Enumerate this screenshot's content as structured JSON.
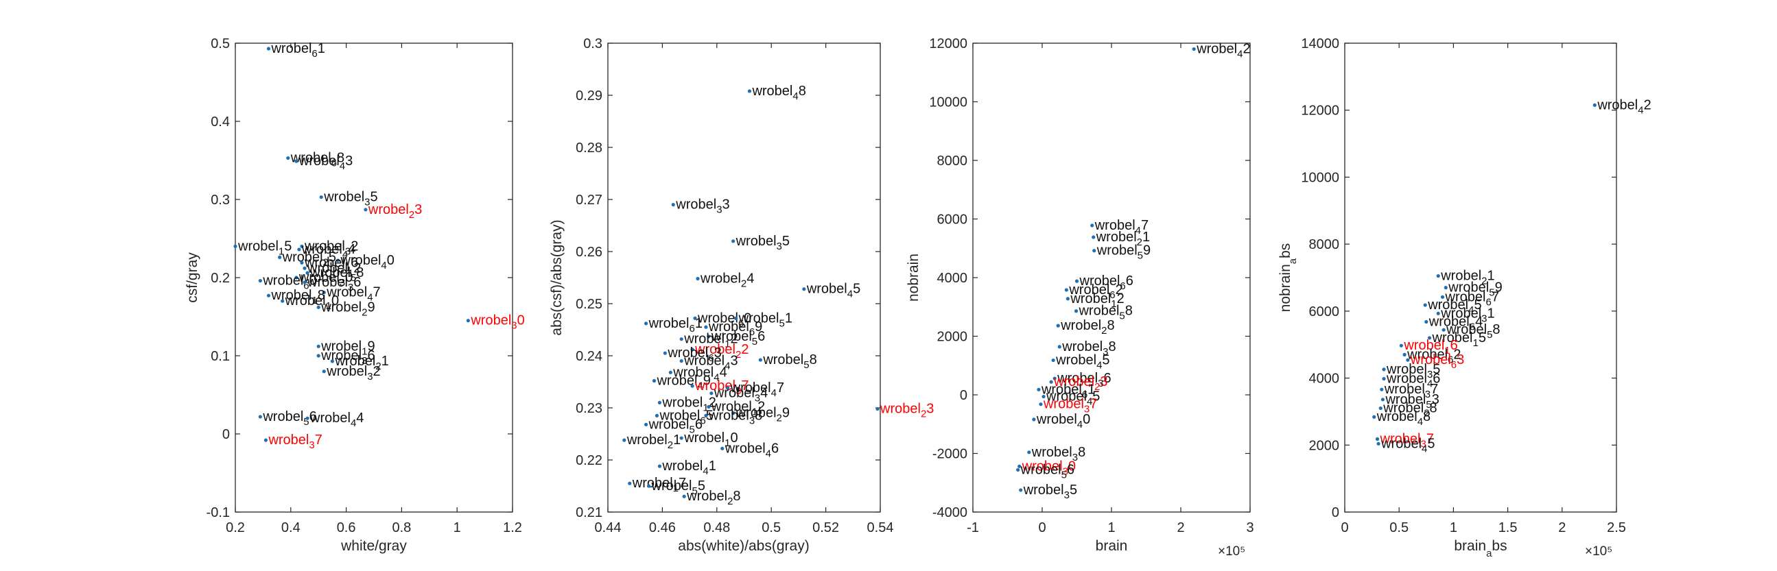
{
  "colors": {
    "point": "#1f6fb4",
    "label_normal": "#111111",
    "label_highlight": "#ff0000",
    "axis": "#262626"
  },
  "chart_data": [
    {
      "type": "scatter",
      "xlabel": "white/gray",
      "ylabel": "csf/gray",
      "xlim": [
        0.2,
        1.2
      ],
      "ylim": [
        -0.1,
        0.5
      ],
      "xticks": [
        "0.2",
        "0.4",
        "0.6",
        "0.8",
        "1",
        "1.2"
      ],
      "yticks": [
        "-0.1",
        "0",
        "0.1",
        "0.2",
        "0.3",
        "0.4",
        "0.5"
      ],
      "exponent": "",
      "points": [
        {
          "x": 0.32,
          "y": 0.493,
          "label": "wrobel",
          "sub": "6",
          "suf": "1",
          "hl": false
        },
        {
          "x": 0.39,
          "y": 0.353,
          "label": "wrobel",
          "sub": "6",
          "suf": "8",
          "hl": false
        },
        {
          "x": 0.42,
          "y": 0.349,
          "label": "wrobel",
          "sub": "4",
          "suf": "3",
          "hl": false
        },
        {
          "x": 0.51,
          "y": 0.303,
          "label": "wrobel",
          "sub": "3",
          "suf": "5",
          "hl": false
        },
        {
          "x": 0.67,
          "y": 0.287,
          "label": "wrobel",
          "sub": "2",
          "suf": "3",
          "hl": true
        },
        {
          "x": 0.2,
          "y": 0.24,
          "label": "wrobel",
          "sub": "1",
          "suf": "5",
          "hl": false
        },
        {
          "x": 0.44,
          "y": 0.24,
          "label": "wrobel",
          "sub": "3",
          "suf": "2",
          "hl": false
        },
        {
          "x": 0.43,
          "y": 0.236,
          "label": "wrobel",
          "sub": "4",
          "suf": "4",
          "hl": false
        },
        {
          "x": 0.36,
          "y": 0.226,
          "label": "wrobel",
          "sub": "2",
          "suf": "5",
          "hl": false
        },
        {
          "x": 0.57,
          "y": 0.222,
          "label": "wrobel",
          "sub": "4",
          "suf": "0",
          "hl": false
        },
        {
          "x": 0.44,
          "y": 0.219,
          "label": "wrobel",
          "sub": "1",
          "suf": "6",
          "hl": false
        },
        {
          "x": 0.45,
          "y": 0.212,
          "label": "wrobel",
          "sub": "1",
          "suf": "2",
          "hl": false
        },
        {
          "x": 0.46,
          "y": 0.206,
          "label": "wrobel",
          "sub": "5",
          "suf": "8",
          "hl": false
        },
        {
          "x": 0.42,
          "y": 0.2,
          "label": "wrobel",
          "sub": "3",
          "suf": "0",
          "hl": false
        },
        {
          "x": 0.29,
          "y": 0.196,
          "label": "wrobel",
          "sub": "6",
          "suf": "0",
          "hl": false
        },
        {
          "x": 0.45,
          "y": 0.194,
          "label": "wrobel",
          "sub": "3",
          "suf": "6",
          "hl": false
        },
        {
          "x": 0.52,
          "y": 0.181,
          "label": "wrobel",
          "sub": "4",
          "suf": "7",
          "hl": false
        },
        {
          "x": 0.32,
          "y": 0.177,
          "label": "wrobel",
          "sub": "1",
          "suf": "8",
          "hl": false
        },
        {
          "x": 0.37,
          "y": 0.17,
          "label": "wrobel",
          "sub": "1",
          "suf": "0",
          "hl": false
        },
        {
          "x": 0.5,
          "y": 0.162,
          "label": "wrobel",
          "sub": "2",
          "suf": "9",
          "hl": false
        },
        {
          "x": 1.04,
          "y": 0.145,
          "label": "wrobel",
          "sub": "3",
          "suf": "0",
          "hl": true
        },
        {
          "x": 0.5,
          "y": 0.112,
          "label": "wrobel",
          "sub": "1",
          "suf": "9",
          "hl": false
        },
        {
          "x": 0.5,
          "y": 0.1,
          "label": "wrobel",
          "sub": "3",
          "suf": "6",
          "hl": false
        },
        {
          "x": 0.55,
          "y": 0.093,
          "label": "wrobel",
          "sub": "2",
          "suf": "1",
          "hl": false
        },
        {
          "x": 0.52,
          "y": 0.08,
          "label": "wrobel",
          "sub": "3",
          "suf": "2",
          "hl": false
        },
        {
          "x": 0.29,
          "y": 0.022,
          "label": "wrobel",
          "sub": "5",
          "suf": "6",
          "hl": false
        },
        {
          "x": 0.46,
          "y": 0.02,
          "label": "wrobel",
          "sub": "4",
          "suf": "4",
          "hl": false
        },
        {
          "x": 0.31,
          "y": -0.008,
          "label": "wrobel",
          "sub": "3",
          "suf": "7",
          "hl": true
        }
      ]
    },
    {
      "type": "scatter",
      "xlabel": "abs(white)/abs(gray)",
      "ylabel": "abs(csf)/abs(gray)",
      "xlim": [
        0.44,
        0.54
      ],
      "ylim": [
        0.21,
        0.3
      ],
      "xticks": [
        "0.44",
        "0.46",
        "0.48",
        "0.5",
        "0.52",
        "0.54"
      ],
      "yticks": [
        "0.21",
        "0.22",
        "0.23",
        "0.24",
        "0.25",
        "0.26",
        "0.27",
        "0.28",
        "0.29",
        "0.3"
      ],
      "exponent": "",
      "points": [
        {
          "x": 0.492,
          "y": 0.2908,
          "label": "wrobel",
          "sub": "4",
          "suf": "8",
          "hl": false
        },
        {
          "x": 0.464,
          "y": 0.269,
          "label": "wrobel",
          "sub": "3",
          "suf": "3",
          "hl": false
        },
        {
          "x": 0.486,
          "y": 0.262,
          "label": "wrobel",
          "sub": "3",
          "suf": "5",
          "hl": false
        },
        {
          "x": 0.473,
          "y": 0.2548,
          "label": "wrobel",
          "sub": "2",
          "suf": "4",
          "hl": false
        },
        {
          "x": 0.512,
          "y": 0.2528,
          "label": "wrobel",
          "sub": "4",
          "suf": "5",
          "hl": false
        },
        {
          "x": 0.472,
          "y": 0.2472,
          "label": "wrobel",
          "sub": "6",
          "suf": "0",
          "hl": false
        },
        {
          "x": 0.487,
          "y": 0.2472,
          "label": "wrobel",
          "sub": "5",
          "suf": "1",
          "hl": false
        },
        {
          "x": 0.454,
          "y": 0.2462,
          "label": "wrobel",
          "sub": "6",
          "suf": "1",
          "hl": false
        },
        {
          "x": 0.476,
          "y": 0.2455,
          "label": "wrobel",
          "sub": "6",
          "suf": "9",
          "hl": false
        },
        {
          "x": 0.477,
          "y": 0.2437,
          "label": "wrobel",
          "sub": "5",
          "suf": "6",
          "hl": false
        },
        {
          "x": 0.467,
          "y": 0.2432,
          "label": "wrobel",
          "sub": "1",
          "suf": "2",
          "hl": false
        },
        {
          "x": 0.471,
          "y": 0.2412,
          "label": "wrobel",
          "sub": "2",
          "suf": "2",
          "hl": true
        },
        {
          "x": 0.461,
          "y": 0.2405,
          "label": "wrobel",
          "sub": "6",
          "suf": "3",
          "hl": false
        },
        {
          "x": 0.496,
          "y": 0.2392,
          "label": "wrobel",
          "sub": "5",
          "suf": "8",
          "hl": false
        },
        {
          "x": 0.467,
          "y": 0.239,
          "label": "wrobel",
          "sub": "4",
          "suf": "3",
          "hl": false
        },
        {
          "x": 0.463,
          "y": 0.2368,
          "label": "wrobel",
          "sub": "4",
          "suf": "4",
          "hl": false
        },
        {
          "x": 0.457,
          "y": 0.2352,
          "label": "wrobel",
          "sub": "4",
          "suf": "9",
          "hl": false
        },
        {
          "x": 0.471,
          "y": 0.2342,
          "label": "wrobel",
          "sub": "3",
          "suf": "7",
          "hl": true
        },
        {
          "x": 0.484,
          "y": 0.2338,
          "label": "wrobel",
          "sub": "4",
          "suf": "7",
          "hl": false
        },
        {
          "x": 0.478,
          "y": 0.2328,
          "label": "wrobel",
          "sub": "3",
          "suf": "4",
          "hl": false
        },
        {
          "x": 0.459,
          "y": 0.231,
          "label": "wrobel",
          "sub": "1",
          "suf": "2",
          "hl": false
        },
        {
          "x": 0.477,
          "y": 0.2302,
          "label": "wrobel",
          "sub": "1",
          "suf": "2",
          "hl": false
        },
        {
          "x": 0.539,
          "y": 0.2298,
          "label": "wrobel",
          "sub": "2",
          "suf": "3",
          "hl": true
        },
        {
          "x": 0.486,
          "y": 0.229,
          "label": "wrobel",
          "sub": "2",
          "suf": "9",
          "hl": false
        },
        {
          "x": 0.458,
          "y": 0.2285,
          "label": "wrobel",
          "sub": "6",
          "suf": "5",
          "hl": false
        },
        {
          "x": 0.476,
          "y": 0.2285,
          "label": "wrobel",
          "sub": "3",
          "suf": "8",
          "hl": false
        },
        {
          "x": 0.454,
          "y": 0.2268,
          "label": "wrobel",
          "sub": "5",
          "suf": "6",
          "hl": false
        },
        {
          "x": 0.446,
          "y": 0.2238,
          "label": "wrobel",
          "sub": "2",
          "suf": "1",
          "hl": false
        },
        {
          "x": 0.467,
          "y": 0.2242,
          "label": "wrobel",
          "sub": "1",
          "suf": "0",
          "hl": false
        },
        {
          "x": 0.482,
          "y": 0.2222,
          "label": "wrobel",
          "sub": "4",
          "suf": "6",
          "hl": false
        },
        {
          "x": 0.459,
          "y": 0.2188,
          "label": "wrobel",
          "sub": "4",
          "suf": "1",
          "hl": false
        },
        {
          "x": 0.448,
          "y": 0.2155,
          "label": "wrobel",
          "sub": "1",
          "suf": "7",
          "hl": false
        },
        {
          "x": 0.455,
          "y": 0.215,
          "label": "wrobel",
          "sub": "5",
          "suf": "5",
          "hl": false
        },
        {
          "x": 0.468,
          "y": 0.213,
          "label": "wrobel",
          "sub": "2",
          "suf": "8",
          "hl": false
        }
      ]
    },
    {
      "type": "scatter",
      "xlabel": "brain",
      "ylabel": "nobrain",
      "xlim": [
        -1,
        3
      ],
      "ylim": [
        -4000,
        12000
      ],
      "xticks": [
        "-1",
        "0",
        "1",
        "2",
        "3"
      ],
      "yticks": [
        "-4000",
        "-2000",
        "0",
        "2000",
        "4000",
        "6000",
        "8000",
        "10000",
        "12000"
      ],
      "exponent": "×10⁵",
      "points": [
        {
          "x": 2.19,
          "y": 11800,
          "label": "wrobel",
          "sub": "4",
          "suf": "2",
          "hl": false
        },
        {
          "x": 0.72,
          "y": 5780,
          "label": "wrobel",
          "sub": "4",
          "suf": "7",
          "hl": false
        },
        {
          "x": 0.74,
          "y": 5380,
          "label": "wrobel",
          "sub": "2",
          "suf": "1",
          "hl": false
        },
        {
          "x": 0.75,
          "y": 4920,
          "label": "wrobel",
          "sub": "5",
          "suf": "9",
          "hl": false
        },
        {
          "x": 0.5,
          "y": 3880,
          "label": "wrobel",
          "sub": "6",
          "suf": "6",
          "hl": false
        },
        {
          "x": 0.35,
          "y": 3580,
          "label": "wrobel",
          "sub": "6",
          "suf": "2",
          "hl": false
        },
        {
          "x": 0.37,
          "y": 3280,
          "label": "wrobel",
          "sub": "1",
          "suf": "2",
          "hl": false
        },
        {
          "x": 0.49,
          "y": 2860,
          "label": "wrobel",
          "sub": "5",
          "suf": "8",
          "hl": false
        },
        {
          "x": 0.23,
          "y": 2360,
          "label": "wrobel",
          "sub": "2",
          "suf": "8",
          "hl": false
        },
        {
          "x": 0.25,
          "y": 1640,
          "label": "wrobel",
          "sub": "3",
          "suf": "8",
          "hl": false
        },
        {
          "x": 0.16,
          "y": 1180,
          "label": "wrobel",
          "sub": "4",
          "suf": "5",
          "hl": false
        },
        {
          "x": 0.18,
          "y": 560,
          "label": "wrobel",
          "sub": "3",
          "suf": "6",
          "hl": false
        },
        {
          "x": 0.13,
          "y": 440,
          "label": "wrobel",
          "sub": "2",
          "suf": "3",
          "hl": true
        },
        {
          "x": -0.05,
          "y": 180,
          "label": "wrobel",
          "sub": "6",
          "suf": "1",
          "hl": false
        },
        {
          "x": 0.02,
          "y": -60,
          "label": "wrobel",
          "sub": "4",
          "suf": "5",
          "hl": false
        },
        {
          "x": -0.02,
          "y": -320,
          "label": "wrobel",
          "sub": "3",
          "suf": "7",
          "hl": true
        },
        {
          "x": -0.12,
          "y": -840,
          "label": "wrobel",
          "sub": "4",
          "suf": "0",
          "hl": false
        },
        {
          "x": -0.19,
          "y": -1960,
          "label": "wrobel",
          "sub": "3",
          "suf": "8",
          "hl": false
        },
        {
          "x": -0.33,
          "y": -2440,
          "label": "wrobel",
          "sub": "3",
          "suf": "0",
          "hl": true
        },
        {
          "x": -0.35,
          "y": -2560,
          "label": "wrobel",
          "sub": "5",
          "suf": "6",
          "hl": false
        },
        {
          "x": -0.31,
          "y": -3250,
          "label": "wrobel",
          "sub": "3",
          "suf": "5",
          "hl": false
        }
      ]
    },
    {
      "type": "scatter",
      "xlabel": "brain_abs",
      "ylabel": "nobrain_abs",
      "xlim": [
        0,
        2.5
      ],
      "ylim": [
        0,
        14000
      ],
      "xticks": [
        "0",
        "0.5",
        "1",
        "1.5",
        "2",
        "2.5"
      ],
      "yticks": [
        "0",
        "2000",
        "4000",
        "6000",
        "8000",
        "10000",
        "12000",
        "14000"
      ],
      "exponent": "×10⁵",
      "points": [
        {
          "x": 2.3,
          "y": 12150,
          "label": "wrobel",
          "sub": "4",
          "suf": "2",
          "hl": false
        },
        {
          "x": 0.86,
          "y": 7050,
          "label": "wrobel",
          "sub": "2",
          "suf": "1",
          "hl": false
        },
        {
          "x": 0.93,
          "y": 6700,
          "label": "wrobel",
          "sub": "5",
          "suf": "9",
          "hl": false
        },
        {
          "x": 0.9,
          "y": 6420,
          "label": "wrobel",
          "sub": "6",
          "suf": "7",
          "hl": false
        },
        {
          "x": 0.74,
          "y": 6180,
          "label": "wrobel",
          "sub": "4",
          "suf": "5",
          "hl": false
        },
        {
          "x": 0.86,
          "y": 5930,
          "label": "wrobel",
          "sub": "3",
          "suf": "1",
          "hl": false
        },
        {
          "x": 0.75,
          "y": 5680,
          "label": "wrobel",
          "sub": "6",
          "suf": "4",
          "hl": false
        },
        {
          "x": 0.91,
          "y": 5440,
          "label": "wrobel",
          "sub": "5",
          "suf": "8",
          "hl": false
        },
        {
          "x": 0.78,
          "y": 5200,
          "label": "wrobel",
          "sub": "1",
          "suf": "5",
          "hl": false
        },
        {
          "x": 0.52,
          "y": 4970,
          "label": "wrobel",
          "sub": "1",
          "suf": "6",
          "hl": true
        },
        {
          "x": 0.55,
          "y": 4700,
          "label": "wrobel",
          "sub": "6",
          "suf": "2",
          "hl": false
        },
        {
          "x": 0.58,
          "y": 4540,
          "label": "wrobel",
          "sub": "6",
          "suf": "3",
          "hl": true
        },
        {
          "x": 0.36,
          "y": 4260,
          "label": "wrobel",
          "sub": "3",
          "suf": "5",
          "hl": false
        },
        {
          "x": 0.36,
          "y": 3980,
          "label": "wrobel",
          "sub": "4",
          "suf": "6",
          "hl": false
        },
        {
          "x": 0.34,
          "y": 3660,
          "label": "wrobel",
          "sub": "3",
          "suf": "7",
          "hl": false
        },
        {
          "x": 0.35,
          "y": 3360,
          "label": "wrobel",
          "sub": "5",
          "suf": "3",
          "hl": false
        },
        {
          "x": 0.33,
          "y": 3100,
          "label": "wrobel",
          "sub": "2",
          "suf": "8",
          "hl": false
        },
        {
          "x": 0.27,
          "y": 2840,
          "label": "wrobel",
          "sub": "4",
          "suf": "8",
          "hl": false
        },
        {
          "x": 0.3,
          "y": 2180,
          "label": "wrobel",
          "sub": "3",
          "suf": "7",
          "hl": true
        },
        {
          "x": 0.31,
          "y": 2040,
          "label": "wrobel",
          "sub": "4",
          "suf": "5",
          "hl": false
        }
      ]
    }
  ]
}
